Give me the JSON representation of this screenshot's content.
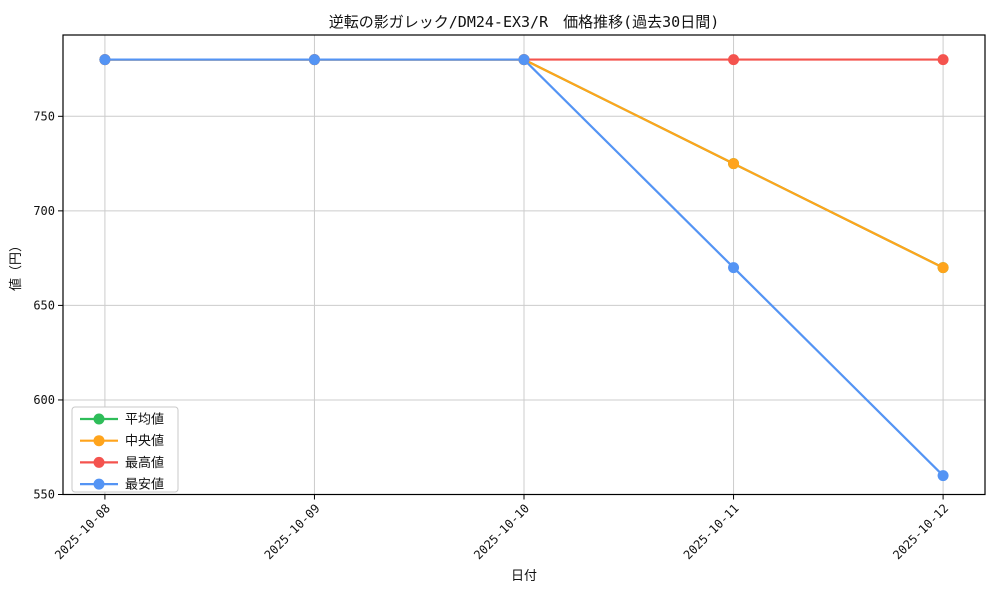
{
  "chart_data": {
    "type": "line",
    "title": "逆転の影ガレック/DM24-EX3/R　価格推移(過去30日間)",
    "xlabel": "日付",
    "ylabel": "値（円）",
    "categories": [
      "2025-10-08",
      "2025-10-09",
      "2025-10-10",
      "2025-10-11",
      "2025-10-12"
    ],
    "series": [
      {
        "name": "平均値",
        "color": "#2ebd59",
        "values": [
          780,
          780,
          780,
          725,
          670
        ]
      },
      {
        "name": "中央値",
        "color": "#ffa41c",
        "values": [
          780,
          780,
          780,
          725,
          670
        ]
      },
      {
        "name": "最高値",
        "color": "#f4534e",
        "values": [
          780,
          780,
          780,
          780,
          780
        ]
      },
      {
        "name": "最安値",
        "color": "#5494f4",
        "values": [
          780,
          780,
          780,
          670,
          560
        ]
      }
    ],
    "ylim": [
      550,
      793
    ],
    "yticks": [
      550,
      600,
      650,
      700,
      750
    ],
    "grid": true,
    "grid_color": "#cccccc",
    "spine_color": "#000000",
    "background_color": "#ffffff",
    "legend_position": "lower-left",
    "legend_entries": [
      "平均値",
      "中央値",
      "最高値",
      "最安値"
    ],
    "x_tick_rotation_deg": 45
  }
}
